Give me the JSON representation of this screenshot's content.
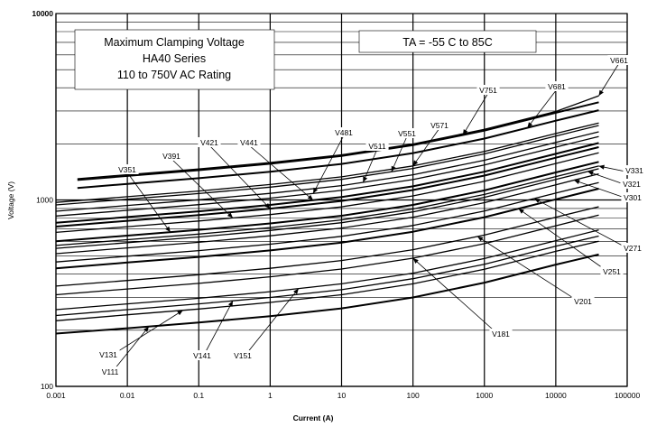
{
  "chart_data": {
    "type": "line",
    "title": "",
    "xlabel": "Current (A)",
    "ylabel": "Voltage (V)",
    "xscale": "log",
    "yscale": "log",
    "xlim": [
      0.001,
      100000
    ],
    "ylim": [
      100,
      10000
    ],
    "grid": true,
    "x_ticks": [
      "0.001",
      "0.01",
      "0.1",
      "1",
      "10",
      "100",
      "1000",
      "10000",
      "100000"
    ],
    "y_ticks": [
      "100",
      "1000",
      "10000"
    ],
    "annotation_box": [
      "Maximum Clamping Voltage",
      "HA40  Series",
      "110 to 750V AC Rating"
    ],
    "condition_box": "TA = -55 C to 85C",
    "series": [
      {
        "name": "V111",
        "x": [
          0.001,
          0.01,
          0.1,
          1,
          10,
          100,
          1000,
          10000,
          40000
        ],
        "y": [
          192,
          205,
          220,
          238,
          262,
          300,
          360,
          450,
          510
        ]
      },
      {
        "name": "V131",
        "x": [
          0.001,
          0.01,
          0.1,
          1,
          10,
          100,
          1000,
          10000,
          40000
        ],
        "y": [
          225,
          242,
          260,
          282,
          310,
          355,
          425,
          530,
          600
        ]
      },
      {
        "name": "V141",
        "x": [
          0.001,
          0.01,
          0.1,
          1,
          10,
          100,
          1000,
          10000,
          40000
        ],
        "y": [
          240,
          258,
          277,
          300,
          330,
          378,
          452,
          565,
          640
        ]
      },
      {
        "name": "V151",
        "x": [
          0.001,
          0.01,
          0.1,
          1,
          10,
          100,
          1000,
          10000,
          40000
        ],
        "y": [
          258,
          277,
          297,
          322,
          355,
          405,
          485,
          605,
          690
        ]
      },
      {
        "name": "V181",
        "x": [
          0.001,
          0.01,
          0.1,
          1,
          10,
          100,
          1000,
          10000,
          40000
        ],
        "y": [
          310,
          333,
          357,
          387,
          426,
          487,
          583,
          727,
          830
        ]
      },
      {
        "name": "V201",
        "x": [
          0.001,
          0.01,
          0.1,
          1,
          10,
          100,
          1000,
          10000,
          40000
        ],
        "y": [
          345,
          370,
          397,
          430,
          473,
          541,
          648,
          808,
          920
        ]
      },
      {
        "name": "V251",
        "x": [
          0.001,
          0.01,
          0.1,
          1,
          10,
          100,
          1000,
          10000,
          40000
        ],
        "y": [
          430,
          462,
          495,
          536,
          590,
          675,
          808,
          1008,
          1150
        ]
      },
      {
        "name": "V271",
        "x": [
          0.001,
          0.01,
          0.1,
          1,
          10,
          100,
          1000,
          10000,
          40000
        ],
        "y": [
          465,
          499,
          535,
          579,
          638,
          729,
          873,
          1089,
          1240
        ]
      },
      {
        "name": "V301",
        "x": [
          0.001,
          0.01,
          0.1,
          1,
          10,
          100,
          1000,
          10000,
          40000
        ],
        "y": [
          515,
          553,
          593,
          642,
          707,
          808,
          967,
          1206,
          1380
        ]
      },
      {
        "name": "V321",
        "x": [
          0.001,
          0.01,
          0.1,
          1,
          10,
          100,
          1000,
          10000,
          40000
        ],
        "y": [
          550,
          590,
          633,
          686,
          755,
          863,
          1033,
          1288,
          1470
        ]
      },
      {
        "name": "V331",
        "x": [
          0.001,
          0.01,
          0.1,
          1,
          10,
          100,
          1000,
          10000,
          40000
        ],
        "y": [
          570,
          612,
          656,
          711,
          782,
          894,
          1070,
          1335,
          1520
        ]
      },
      {
        "name": "V351",
        "x": [
          0.001,
          0.01,
          0.1,
          1,
          10,
          100,
          1000,
          10000,
          40000
        ],
        "y": [
          600,
          644,
          691,
          748,
          823,
          941,
          1126,
          1405,
          1600
        ]
      },
      {
        "name": "V391",
        "x": [
          0.001,
          0.01,
          0.1,
          1,
          10,
          100,
          1000,
          10000,
          40000
        ],
        "y": [
          670,
          719,
          771,
          835,
          919,
          1051,
          1258,
          1569,
          1790
        ]
      },
      {
        "name": "V421",
        "x": [
          0.001,
          0.01,
          0.1,
          1,
          10,
          100,
          1000,
          10000,
          40000
        ],
        "y": [
          720,
          773,
          829,
          898,
          988,
          1130,
          1352,
          1686,
          1920
        ]
      },
      {
        "name": "V441",
        "x": [
          0.001,
          0.01,
          0.1,
          1,
          10,
          100,
          1000,
          10000,
          40000
        ],
        "y": [
          755,
          810,
          869,
          941,
          1036,
          1184,
          1417,
          1768,
          2020
        ]
      },
      {
        "name": "V481",
        "x": [
          0.001,
          0.01,
          0.1,
          1,
          10,
          100,
          1000,
          10000,
          40000
        ],
        "y": [
          820,
          880,
          944,
          1022,
          1125,
          1286,
          1540,
          1920,
          2190
        ]
      },
      {
        "name": "V511",
        "x": [
          0.001,
          0.01,
          0.1,
          1,
          10,
          100,
          1000,
          10000,
          40000
        ],
        "y": [
          870,
          934,
          1002,
          1085,
          1194,
          1365,
          1634,
          2037,
          2320
        ]
      },
      {
        "name": "V551",
        "x": [
          0.001,
          0.01,
          0.1,
          1,
          10,
          100,
          1000,
          10000,
          40000
        ],
        "y": [
          940,
          1009,
          1082,
          1172,
          1290,
          1475,
          1765,
          2201,
          2510
        ]
      },
      {
        "name": "V571",
        "x": [
          0.001,
          0.01,
          0.1,
          1,
          10,
          100,
          1000,
          10000,
          40000
        ],
        "y": [
          970,
          1041,
          1117,
          1210,
          1331,
          1522,
          1822,
          2272,
          2590
        ]
      },
      {
        "name": "V681",
        "x": [
          0.002,
          0.01,
          0.1,
          1,
          10,
          100,
          1000,
          10000,
          40000
        ],
        "y": [
          1160,
          1220,
          1309,
          1418,
          1560,
          1783,
          2135,
          2662,
          3030
        ]
      },
      {
        "name": "V751",
        "x": [
          0.002,
          0.01,
          0.1,
          1,
          10,
          100,
          1000,
          10000,
          40000
        ],
        "y": [
          1280,
          1346,
          1444,
          1564,
          1721,
          1967,
          2355,
          2937,
          3340
        ]
      },
      {
        "name": "V661",
        "x": [
          0.002,
          0.01,
          0.1,
          1,
          10,
          100,
          1000,
          10000,
          40000
        ],
        "y": [
          1300,
          1366,
          1466,
          1588,
          1747,
          1997,
          2391,
          2982,
          3620
        ]
      }
    ],
    "labels": [
      {
        "text": "V111",
        "series": "V111",
        "at_x": 0.02
      },
      {
        "text": "V131",
        "series": "V131",
        "at_x": 0.06
      },
      {
        "text": "V141",
        "series": "V141",
        "at_x": 0.3
      },
      {
        "text": "V151",
        "series": "V151",
        "at_x": 2.5
      },
      {
        "text": "V181",
        "series": "V181",
        "at_x": 100
      },
      {
        "text": "V201",
        "series": "V201",
        "at_x": 800
      },
      {
        "text": "V251",
        "series": "V251",
        "at_x": 3000
      },
      {
        "text": "V271",
        "series": "V271",
        "at_x": 5000
      },
      {
        "text": "V301",
        "series": "V301",
        "at_x": 18000
      },
      {
        "text": "V321",
        "series": "V321",
        "at_x": 28000
      },
      {
        "text": "V331",
        "series": "V331",
        "at_x": 40000
      },
      {
        "text": "V351",
        "series": "V351",
        "at_x": 0.04
      },
      {
        "text": "V391",
        "series": "V391",
        "at_x": 0.3
      },
      {
        "text": "V421",
        "series": "V421",
        "at_x": 1
      },
      {
        "text": "V441",
        "series": "V441",
        "at_x": 4
      },
      {
        "text": "V481",
        "series": "V481",
        "at_x": 4
      },
      {
        "text": "V511",
        "series": "V511",
        "at_x": 20
      },
      {
        "text": "V551",
        "series": "V551",
        "at_x": 50
      },
      {
        "text": "V571",
        "series": "V571",
        "at_x": 100
      },
      {
        "text": "V681",
        "series": "V681",
        "at_x": 4000
      },
      {
        "text": "V751",
        "series": "V751",
        "at_x": 500
      },
      {
        "text": "V661",
        "series": "V661",
        "at_x": 40000
      }
    ]
  }
}
